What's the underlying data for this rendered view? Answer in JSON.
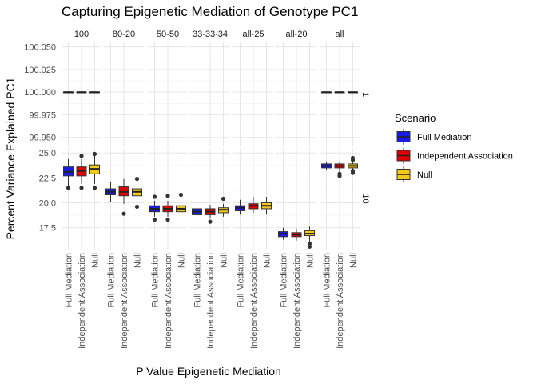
{
  "chart_data": {
    "type": "box",
    "title": "Capturing Epigenetic Mediation of Genotype PC1",
    "xlabel": "P Value Epigenetic Mediation",
    "ylabel": "Percent Variance Explained PC1",
    "columns": [
      "100",
      "80-20",
      "50-50",
      "33-33-34",
      "all-25",
      "all-20",
      "all"
    ],
    "x_tick_labels": [
      "Full Mediation",
      "Independent Association",
      "Null"
    ],
    "legend": {
      "title": "Scenario",
      "position": "right",
      "items": [
        {
          "label": "Full Mediation",
          "color": "#1a1ae6"
        },
        {
          "label": "Independent Association",
          "color": "#e00000"
        },
        {
          "label": "Null",
          "color": "#f2c91c"
        }
      ]
    },
    "rows": [
      {
        "label": "1",
        "ylim": [
          99.94,
          100.055
        ],
        "yticks": [
          99.95,
          99.975,
          100.0,
          100.025,
          100.05
        ],
        "ytick_labels": [
          "99.950",
          "99.975",
          "100.000",
          "100.025",
          "100.050"
        ],
        "boxes": [
          {
            "column": "100",
            "stats": [
              [
                100,
                100,
                100,
                100,
                100
              ],
              [
                100,
                100,
                100,
                100,
                100
              ],
              [
                100,
                100,
                100,
                100,
                100
              ]
            ],
            "outliers": [
              [],
              [],
              []
            ]
          },
          {
            "column": "all",
            "stats": [
              [
                100,
                100,
                100,
                100,
                100
              ],
              [
                100,
                100,
                100,
                100,
                100
              ],
              [
                100,
                100,
                100,
                100,
                100
              ]
            ],
            "outliers": [
              [],
              [],
              []
            ]
          }
        ]
      },
      {
        "label": "10",
        "ylim": [
          15.3,
          25.5
        ],
        "yticks": [
          17.5,
          20.0,
          22.5,
          25.0
        ],
        "ytick_labels": [
          "17.5",
          "20.0",
          "22.5",
          "25.0"
        ],
        "boxes": [
          {
            "column": "100",
            "stats": [
              [
                21.7,
                22.7,
                23.1,
                23.6,
                24.4
              ],
              [
                21.9,
                22.7,
                23.2,
                23.6,
                24.4
              ],
              [
                21.9,
                22.9,
                23.4,
                23.8,
                24.7
              ]
            ],
            "outliers": [
              [
                21.5
              ],
              [
                21.5,
                24.7
              ],
              [
                21.5,
                24.9
              ]
            ]
          },
          {
            "column": "80-20",
            "stats": [
              [
                20.1,
                20.8,
                21.1,
                21.4,
                22.1
              ],
              [
                19.9,
                20.7,
                21.1,
                21.6,
                22.4
              ],
              [
                19.9,
                20.7,
                21.1,
                21.4,
                22.1
              ]
            ],
            "outliers": [
              [],
              [
                18.9
              ],
              [
                19.6,
                22.4
              ]
            ]
          },
          {
            "column": "50-50",
            "stats": [
              [
                18.6,
                19.1,
                19.4,
                19.7,
                20.2
              ],
              [
                18.6,
                19.1,
                19.4,
                19.7,
                20.2
              ],
              [
                18.7,
                19.1,
                19.4,
                19.7,
                20.3
              ]
            ],
            "outliers": [
              [
                18.3,
                20.6
              ],
              [
                18.3,
                20.7
              ],
              [
                20.8
              ]
            ]
          },
          {
            "column": "33-33-34",
            "stats": [
              [
                18.3,
                18.8,
                19.1,
                19.4,
                19.9
              ],
              [
                18.4,
                18.8,
                19.1,
                19.4,
                19.8
              ],
              [
                18.6,
                19.0,
                19.3,
                19.5,
                19.9
              ]
            ],
            "outliers": [
              [],
              [
                18.1
              ],
              [
                20.4
              ]
            ]
          },
          {
            "column": "all-25",
            "stats": [
              [
                18.8,
                19.2,
                19.5,
                19.7,
                20.3
              ],
              [
                19.0,
                19.4,
                19.7,
                19.9,
                20.6
              ],
              [
                18.8,
                19.4,
                19.7,
                20.0,
                20.6
              ]
            ],
            "outliers": [
              [],
              [],
              []
            ]
          },
          {
            "column": "all-20",
            "stats": [
              [
                16.3,
                16.6,
                16.9,
                17.1,
                17.5
              ],
              [
                16.2,
                16.6,
                16.8,
                17.0,
                17.4
              ],
              [
                16.1,
                16.7,
                16.9,
                17.2,
                17.6
              ]
            ],
            "outliers": [
              [],
              [],
              [
                15.9,
                15.6
              ]
            ]
          },
          {
            "column": "all",
            "stats": [
              [
                23.3,
                23.5,
                23.7,
                23.9,
                24.1
              ],
              [
                23.1,
                23.5,
                23.7,
                23.9,
                24.1
              ],
              [
                23.2,
                23.5,
                23.7,
                23.9,
                24.1
              ]
            ],
            "outliers": [
              [],
              [
                22.7,
                22.9
              ],
              [
                23.0,
                23.2,
                24.3,
                24.5
              ]
            ]
          }
        ]
      }
    ]
  }
}
